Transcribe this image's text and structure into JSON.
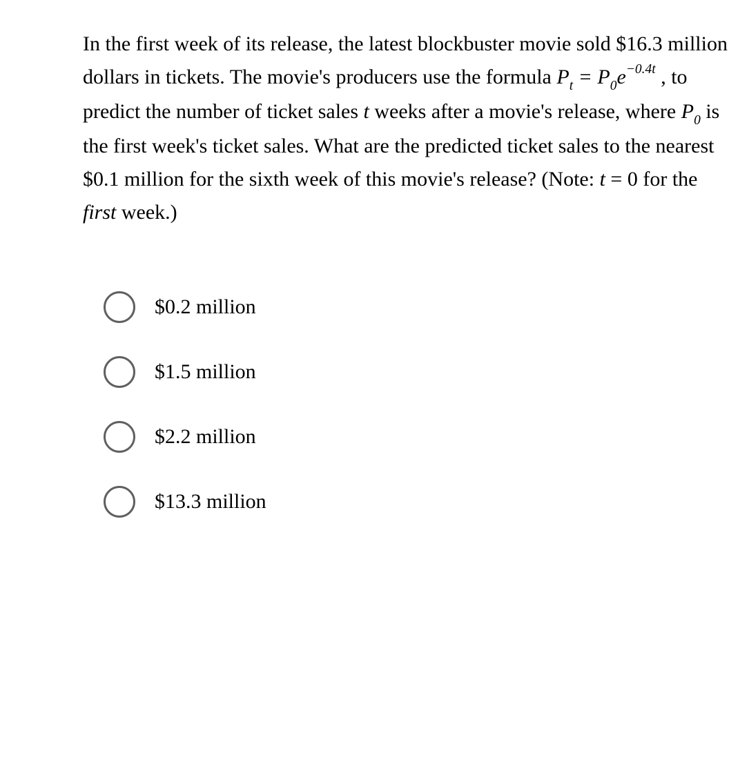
{
  "question": {
    "part1": "In the first week of its release, the latest blockbuster movie sold $16.3 million dollars in tickets. The movie's producers use the formula ",
    "formula_pt": "P",
    "formula_sub_t": "t",
    "formula_eq": " = ",
    "formula_p0": "P",
    "formula_sub_0": "0",
    "formula_e": "e",
    "formula_exp": "−0.4t",
    "part2_a": ", to predict the number of ticket sales ",
    "part2_t": "t",
    "part2_b": " weeks after a movie's release, where ",
    "part2_p0_p": "P",
    "part2_p0_0": "0",
    "part2_c": " is the first week's ticket sales. What are the predicted ticket sales to the nearest $0.1 million for the sixth week of this movie's release? (Note: ",
    "note_t": "t",
    "note_eq": " = 0 for the ",
    "note_first": "first",
    "note_end": " week.)"
  },
  "options": {
    "a": "$0.2 million",
    "b": "$1.5 million",
    "c": "$2.2 million",
    "d": "$13.3 million"
  }
}
